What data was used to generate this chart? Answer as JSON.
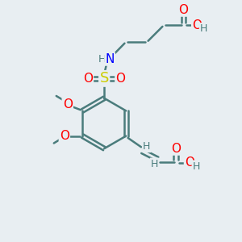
{
  "bg_color": "#e8eef2",
  "C": "#4a7c7c",
  "O": "#ff0000",
  "N": "#0000ff",
  "S": "#cccc00",
  "H": "#4a7c7c",
  "bond_color": "#4a7c7c",
  "bond_width": 1.8,
  "fs": 11,
  "fs2": 9
}
